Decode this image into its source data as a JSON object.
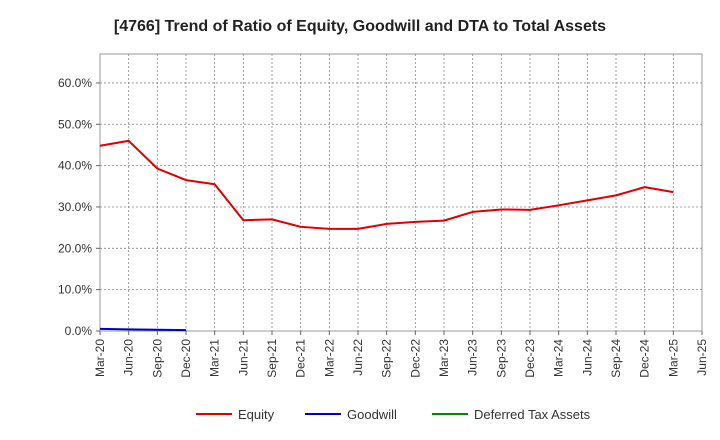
{
  "chart_data": {
    "type": "line",
    "title": "[4766]  Trend of Ratio of Equity, Goodwill and DTA to Total Assets",
    "xlabel": "",
    "ylabel": "",
    "ylim": [
      0,
      67
    ],
    "yticks": [
      0,
      10,
      20,
      30,
      40,
      50,
      60
    ],
    "ytick_labels": [
      "0.0%",
      "10.0%",
      "20.0%",
      "30.0%",
      "40.0%",
      "50.0%",
      "60.0%"
    ],
    "categories": [
      "Mar-20",
      "Jun-20",
      "Sep-20",
      "Dec-20",
      "Mar-21",
      "Jun-21",
      "Sep-21",
      "Dec-21",
      "Mar-22",
      "Jun-22",
      "Sep-22",
      "Dec-22",
      "Mar-23",
      "Jun-23",
      "Sep-23",
      "Dec-23",
      "Mar-24",
      "Jun-24",
      "Sep-24",
      "Dec-24",
      "Mar-25",
      "Jun-25"
    ],
    "grid": true,
    "legend_position": "bottom",
    "series": [
      {
        "name": "Equity",
        "color": "#dd0000",
        "values": [
          44.8,
          46.0,
          39.3,
          36.5,
          35.5,
          26.8,
          27.0,
          25.2,
          24.7,
          24.7,
          25.9,
          26.4,
          26.7,
          28.8,
          29.4,
          29.3,
          30.4,
          31.6,
          32.8,
          34.8,
          33.6,
          null
        ]
      },
      {
        "name": "Goodwill",
        "color": "#0000cc",
        "values": [
          0.5,
          0.4,
          0.3,
          0.2,
          null,
          null,
          null,
          null,
          null,
          null,
          null,
          null,
          null,
          null,
          null,
          null,
          null,
          null,
          null,
          null,
          null,
          null
        ]
      },
      {
        "name": "Deferred Tax Assets",
        "color": "#008800",
        "values": [
          null,
          null,
          null,
          null,
          null,
          null,
          null,
          null,
          null,
          null,
          null,
          null,
          null,
          null,
          null,
          null,
          null,
          null,
          null,
          null,
          null,
          null
        ]
      }
    ]
  }
}
